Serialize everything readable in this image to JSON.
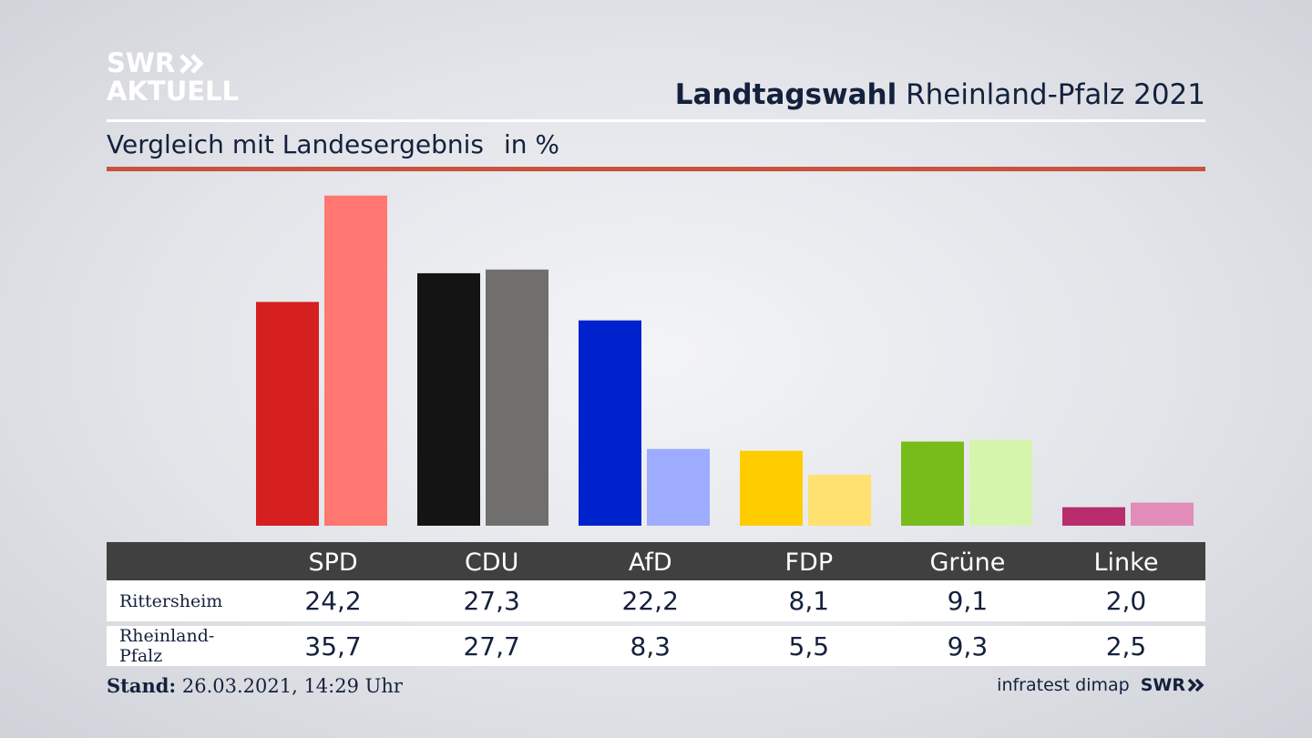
{
  "logo": {
    "line1": "SWR",
    "line2": "AKTUELL"
  },
  "header": {
    "title_bold": "Landtagswahl",
    "title_rest": " Rheinland-Pfalz 2021",
    "subtitle": "Vergleich mit Landesergebnis",
    "unit": "in %"
  },
  "chart_data": {
    "type": "bar",
    "categories": [
      "SPD",
      "CDU",
      "AfD",
      "FDP",
      "Grüne",
      "Linke"
    ],
    "series": [
      {
        "name": "Rittersheim",
        "values": [
          24.2,
          27.3,
          22.2,
          8.1,
          9.1,
          2.0
        ]
      },
      {
        "name": "Rheinland-Pfalz",
        "values": [
          35.7,
          27.7,
          8.3,
          5.5,
          9.3,
          2.5
        ]
      }
    ],
    "colors": {
      "Rittersheim": [
        "#d61f1f",
        "#141414",
        "#0022cc",
        "#ffcc00",
        "#78bc1b",
        "#b92d6e"
      ],
      "Rheinland-Pfalz": [
        "#ff7770",
        "#706f6e",
        "#9eacff",
        "#ffe170",
        "#d5f5ad",
        "#e28cb9"
      ]
    },
    "ylim": [
      0,
      40
    ]
  },
  "table": {
    "headers": [
      "SPD",
      "CDU",
      "AfD",
      "FDP",
      "Grüne",
      "Linke"
    ],
    "rows": [
      {
        "label": "Rittersheim",
        "values": [
          "24,2",
          "27,3",
          "22,2",
          "8,1",
          "9,1",
          "2,0"
        ]
      },
      {
        "label": "Rheinland-Pfalz",
        "values": [
          "35,7",
          "27,7",
          "8,3",
          "5,5",
          "9,3",
          "2,5"
        ]
      }
    ]
  },
  "footer": {
    "stand_label": "Stand:",
    "stand_value": " 26.03.2021, 14:29 Uhr",
    "source": "infratest dimap",
    "brand": "SWR"
  }
}
